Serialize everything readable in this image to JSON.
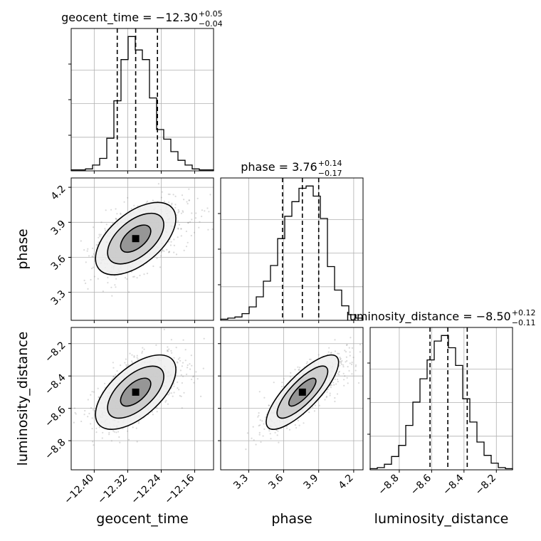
{
  "chart_data": {
    "type": "corner",
    "parameters": [
      "geocent_time",
      "phase",
      "luminosity_distance"
    ],
    "axis_labels": [
      "geocent_time",
      "phase",
      "luminosity_distance"
    ],
    "ranges": [
      [
        -12.455,
        -12.115
      ],
      [
        3.06,
        4.28
      ],
      [
        -8.98,
        -8.1
      ]
    ],
    "ticks": [
      {
        "values": [
          -12.4,
          -12.32,
          -12.24,
          -12.16
        ],
        "labels": [
          "−12.40",
          "−12.32",
          "−12.24",
          "−12.16"
        ]
      },
      {
        "values": [
          3.3,
          3.6,
          3.9,
          4.2
        ],
        "labels": [
          "3.3",
          "3.6",
          "3.9",
          "4.2"
        ]
      },
      {
        "values": [
          -8.8,
          -8.6,
          -8.4,
          -8.2
        ],
        "labels": [
          "−8.8",
          "−8.6",
          "−8.4",
          "−8.2"
        ]
      }
    ],
    "titles": [
      {
        "label": "geocent_time",
        "median": "−12.30",
        "plus": "+0.05",
        "minus": "−0.04"
      },
      {
        "label": "phase",
        "median": "3.76",
        "plus": "+0.14",
        "minus": "−0.17"
      },
      {
        "label": "luminosity_distance",
        "median": "−8.50",
        "plus": "+0.12",
        "minus": "−0.11"
      }
    ],
    "quantiles": [
      [
        -12.345,
        -12.301,
        -12.249
      ],
      [
        3.59,
        3.76,
        3.9
      ],
      [
        -8.61,
        -8.5,
        -8.38
      ]
    ],
    "histograms": [
      {
        "bin_start": -12.455,
        "bin_end": -12.115,
        "counts": [
          1,
          1,
          2,
          6,
          13,
          34,
          73,
          116,
          140,
          126,
          116,
          76,
          43,
          33,
          20,
          11,
          6,
          2,
          1,
          1
        ]
      },
      {
        "bin_start": 3.06,
        "bin_end": 4.28,
        "counts": [
          1,
          2,
          3,
          6,
          12,
          21,
          35,
          49,
          73,
          93,
          106,
          118,
          120,
          111,
          91,
          48,
          27,
          13,
          5,
          2
        ]
      },
      {
        "bin_start": -8.98,
        "bin_end": -8.1,
        "counts": [
          1,
          2,
          5,
          12,
          22,
          40,
          61,
          82,
          99,
          116,
          121,
          110,
          94,
          64,
          43,
          25,
          13,
          6,
          2,
          1
        ]
      }
    ],
    "grid": true,
    "contour_levels": 3
  }
}
